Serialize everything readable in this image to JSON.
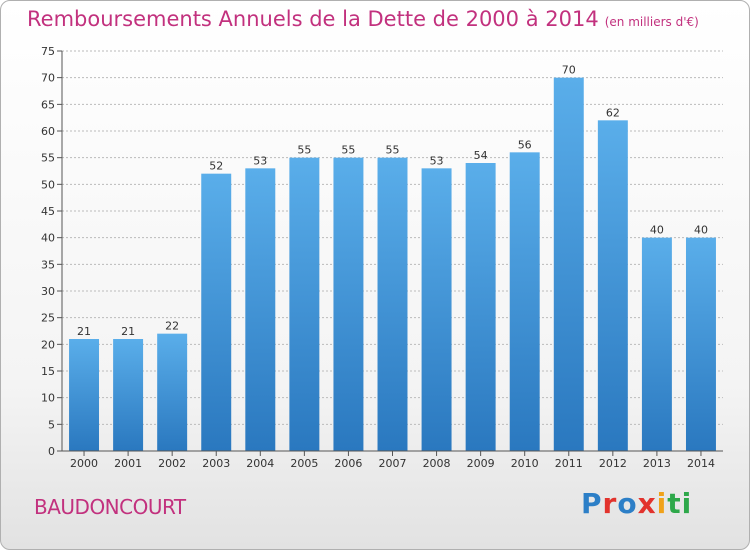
{
  "page": {
    "title": "Remboursements Annuels de la Dette de 2000 à 2014",
    "unit": "(en milliers d'€)",
    "city": "BAUDONCOURT",
    "logo": "Proxiti",
    "colors": {
      "title": "#c2317e",
      "bar_top": "#5aaeea",
      "bar_bottom": "#2a78bf",
      "grid": "#bbbbbb"
    }
  },
  "chart_data": {
    "type": "bar",
    "title": "Remboursements Annuels de la Dette de 2000 à 2014",
    "subtitle": "(en milliers d'€)",
    "xlabel": "",
    "ylabel": "",
    "categories": [
      "2000",
      "2001",
      "2002",
      "2003",
      "2004",
      "2005",
      "2006",
      "2007",
      "2008",
      "2009",
      "2010",
      "2011",
      "2012",
      "2013",
      "2014"
    ],
    "values": [
      21,
      21,
      22,
      52,
      53,
      55,
      55,
      55,
      53,
      54,
      56,
      70,
      62,
      40,
      40
    ],
    "ylim": [
      0,
      75
    ],
    "yticks": [
      0,
      5,
      10,
      15,
      20,
      25,
      30,
      35,
      40,
      45,
      50,
      55,
      60,
      65,
      70,
      75
    ],
    "grid": true,
    "legend": "none",
    "data_labels": true
  }
}
